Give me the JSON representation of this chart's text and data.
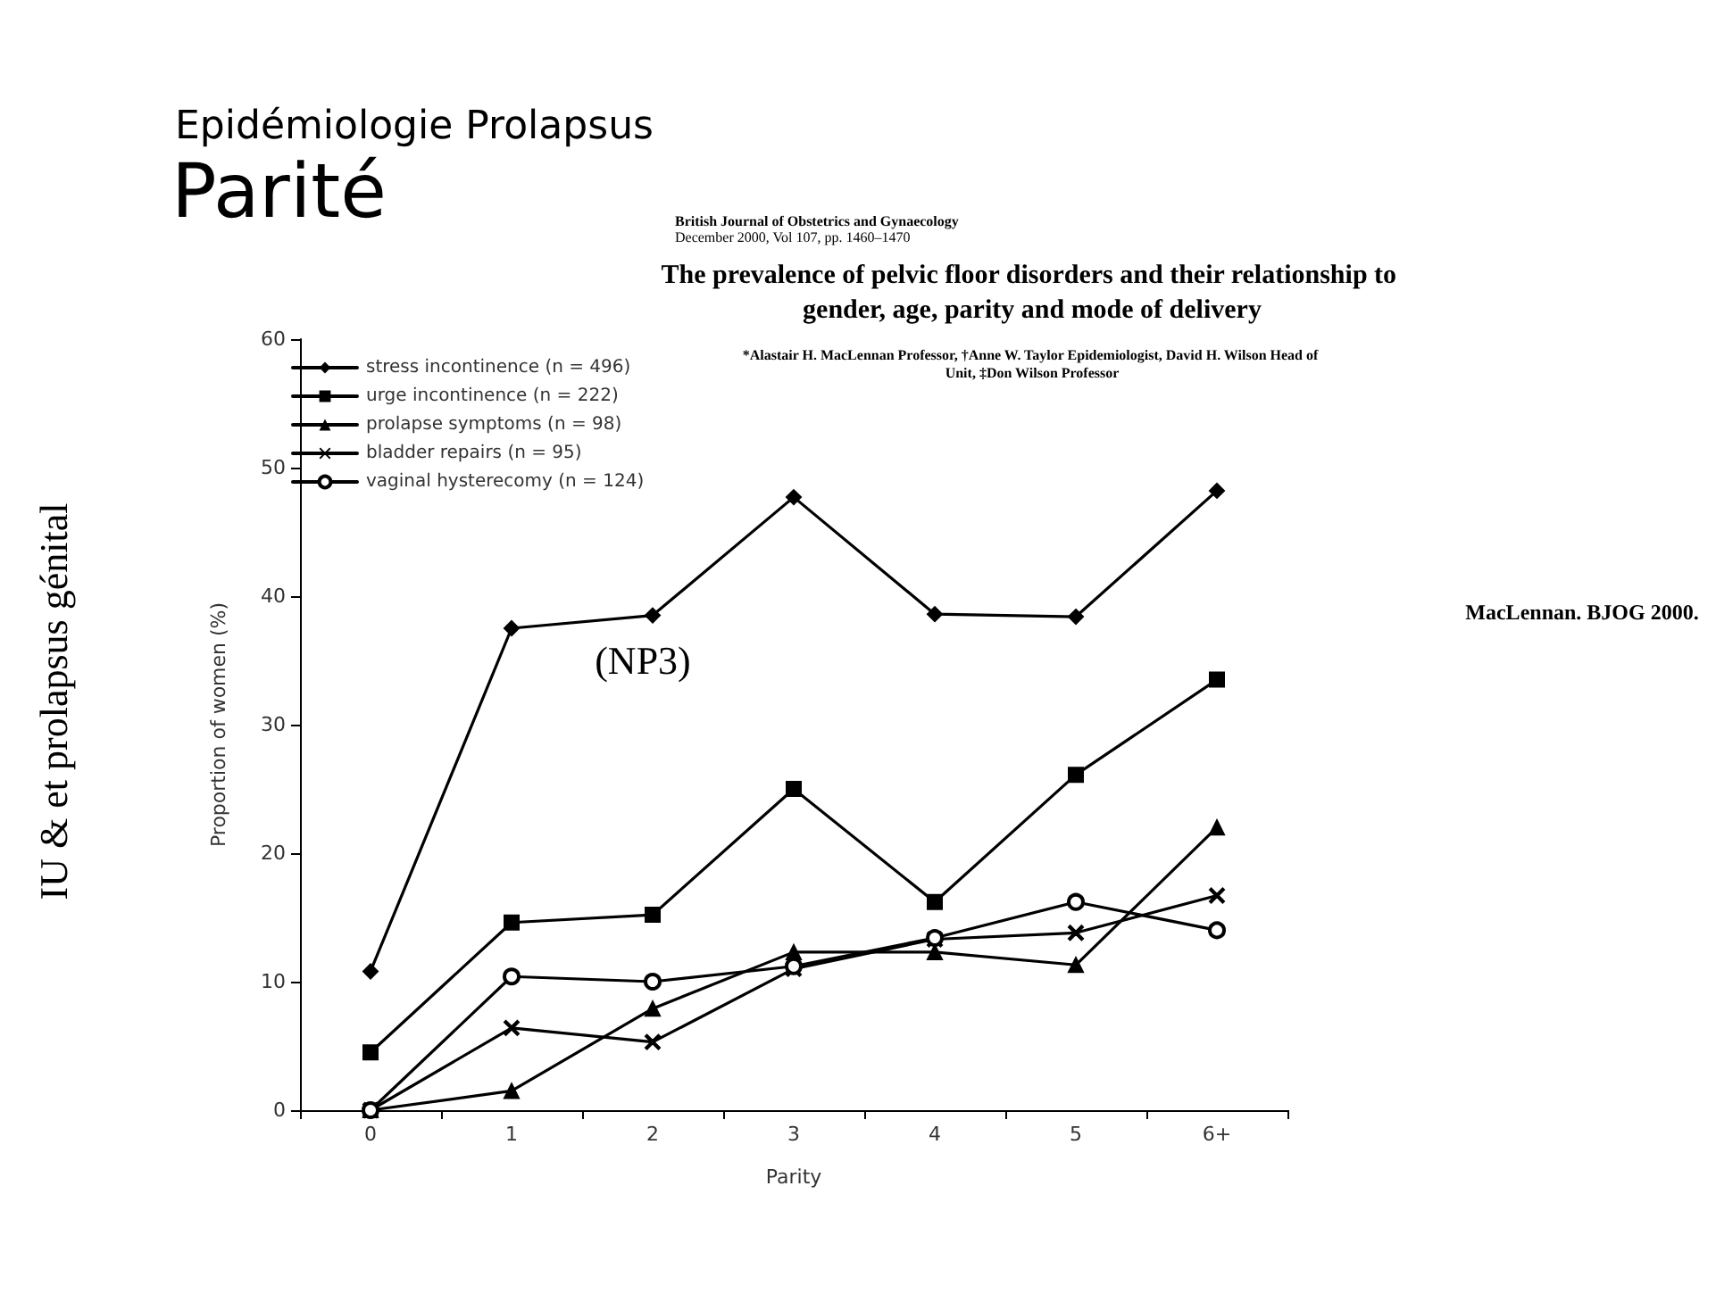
{
  "chart_data": {
    "type": "line",
    "subtitle": "Epidémiologie Prolapsus",
    "title": "Parité",
    "annotations": [
      "IU & et prolapsus génital",
      "British Journal of Obstetrics and Gynaecology",
      "December 2000, Vol 107, pp. 1460–1470",
      "The prevalence of pelvic floor disorders and their relationship to gender, age, parity and mode of delivery",
      "*Alastair H. MacLennan Professor, †Anne W. Taylor Epidemiologist, David H. Wilson Head of Unit, ‡Don Wilson Professor",
      "(NP3)",
      "MacLennan. BJOG 2000."
    ],
    "xlabel": "Parity",
    "ylabel": "Proportion of women (%)",
    "categories": [
      "0",
      "1",
      "2",
      "3",
      "4",
      "5",
      "6+"
    ],
    "ylim": [
      0,
      60
    ],
    "yticks": [
      0,
      10,
      20,
      30,
      40,
      50,
      60
    ],
    "grid": false,
    "legend": "top left",
    "line_style": "solid",
    "series": [
      {
        "name": "stress incontinence (n = 496)",
        "color": "#000000",
        "marker": "diamond",
        "values": [
          10.8,
          37.5,
          38.5,
          47.7,
          38.6,
          38.4,
          48.2
        ]
      },
      {
        "name": "urge incontinence (n = 222)",
        "color": "#000000",
        "marker": "square",
        "values": [
          4.5,
          14.6,
          15.2,
          25.0,
          16.2,
          26.1,
          33.5
        ]
      },
      {
        "name": "prolapse symptoms (n = 98)",
        "color": "#000000",
        "marker": "triangle",
        "values": [
          0,
          1.5,
          7.9,
          12.3,
          12.3,
          11.3,
          22.0
        ]
      },
      {
        "name": "bladder repairs (n = 95)",
        "color": "#000000",
        "marker": "cross",
        "values": [
          0,
          6.4,
          5.3,
          11.0,
          13.3,
          13.8,
          16.7
        ]
      },
      {
        "name": "vaginal hysterecomy (n = 124)",
        "color": "#000000",
        "marker": "circle",
        "values": [
          0,
          10.4,
          10.0,
          11.2,
          13.4,
          16.2,
          14.0
        ]
      }
    ]
  }
}
